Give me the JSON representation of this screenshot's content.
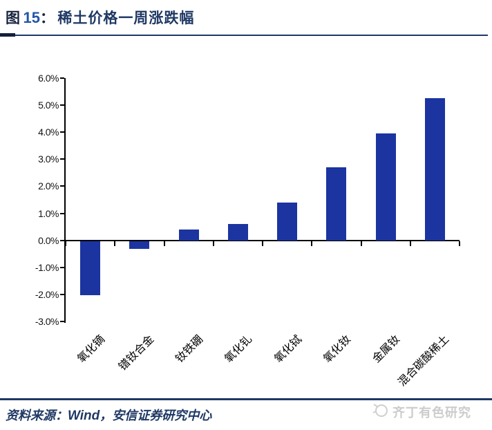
{
  "header": {
    "figure_label": "图",
    "figure_number": "15",
    "separator": "：",
    "title": "稀土价格一周涨跌幅"
  },
  "chart_data": {
    "type": "bar",
    "title": "稀土价格一周涨跌幅",
    "categories": [
      "氧化镝",
      "镨钕合金",
      "钕铁硼",
      "氧化钆",
      "氧化铽",
      "氧化钕",
      "金属钕",
      "混合碳酸稀土"
    ],
    "values": [
      -2.0,
      -0.3,
      0.4,
      0.6,
      1.4,
      2.7,
      3.95,
      5.25
    ],
    "unit": "%",
    "ylim": [
      -3.0,
      6.0
    ],
    "ytick_step": 1.0,
    "ytick_labels": [
      "6.0%",
      "5.0%",
      "4.0%",
      "3.0%",
      "2.0%",
      "1.0%",
      "0.0%",
      "-1.0%",
      "-2.0%",
      "-3.0%"
    ],
    "bar_color": "#1b34a0",
    "grid": false,
    "legend": "none",
    "xlabel": "",
    "ylabel": ""
  },
  "footer": {
    "source_prefix": "资料来源：",
    "source_wind": "Wind",
    "source_comma": "，",
    "source_rest": "安信证券研究中心"
  },
  "watermark": {
    "icon": "sun-logo-icon",
    "text": "齐丁有色研究"
  },
  "colors": {
    "title_navy": "#1f3864",
    "figure_number_blue": "#2456a8",
    "bar_blue": "#1b34a0",
    "axis_black": "#000000",
    "rule_navy": "#1f3864",
    "watermark_gray": "#cccccc"
  }
}
